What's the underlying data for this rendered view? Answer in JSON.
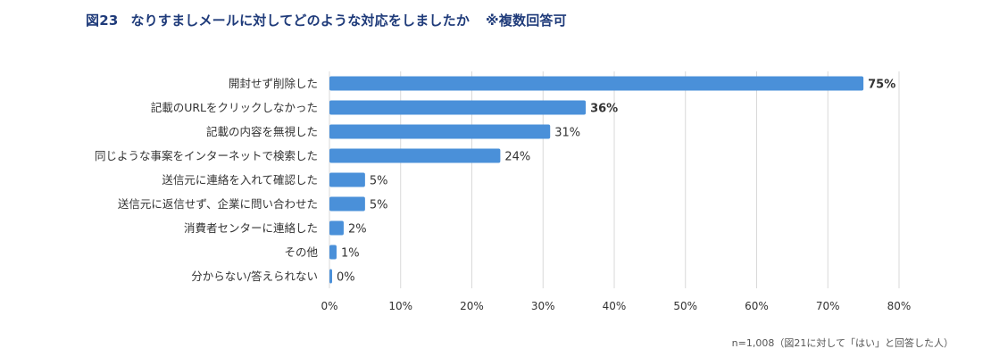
{
  "header": {
    "figure_label": "図23",
    "title": "なりすましメールに対してどのような対応をしましたか",
    "note": "※複数回答可"
  },
  "footnote": "n=1,008（図21に対して「はい」と回答した人）",
  "colors": {
    "bar": "#4a90d9",
    "grid": "#d9d9d9",
    "title": "#1f3b7a",
    "text": "#333333"
  },
  "chart_data": {
    "type": "bar",
    "orientation": "horizontal",
    "categories": [
      "開封せず削除した",
      "記載のURLをクリックしなかった",
      "記載の内容を無視した",
      "同じような事案をインターネットで検索した",
      "送信元に連絡を入れて確認した",
      "送信元に返信せず、企業に問い合わせた",
      "消費者センターに連絡した",
      "その他",
      "分からない/答えられない"
    ],
    "values": [
      75,
      36,
      31,
      24,
      5,
      5,
      2,
      1,
      0
    ],
    "value_labels": [
      "75%",
      "36%",
      "31%",
      "24%",
      "5%",
      "5%",
      "2%",
      "1%",
      "0%"
    ],
    "bold_labels": [
      true,
      true,
      false,
      false,
      false,
      false,
      false,
      false,
      false
    ],
    "xlim": [
      0,
      80
    ],
    "xticks": [
      "0%",
      "10%",
      "20%",
      "30%",
      "40%",
      "50%",
      "60%",
      "70%",
      "80%"
    ],
    "grid": true
  }
}
